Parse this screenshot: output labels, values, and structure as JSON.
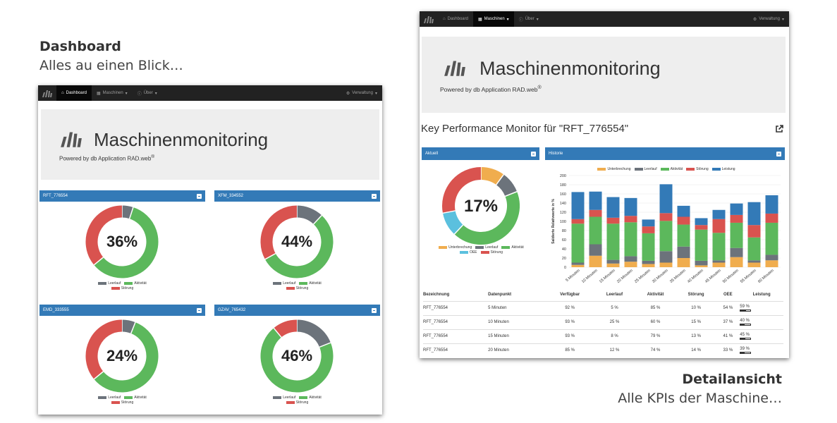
{
  "captions": {
    "dashboard": {
      "title": "Dashboard",
      "sub": "Alles au einen Blick…"
    },
    "detail": {
      "title": "Detailansicht",
      "sub": "Alle KPIs der Maschine…"
    }
  },
  "nav": {
    "dashboard": "Dashboard",
    "machines": "Maschinen",
    "about": "Über",
    "admin": "Verwaltung"
  },
  "brand": {
    "title": "Maschinenmonitoring",
    "powered": "Powered by db Application RAD.web",
    "reg": "®"
  },
  "colors": {
    "unterbrechung": "#f0ad4e",
    "leerlauf": "#6c737b",
    "aktivitaet": "#5cb85c",
    "stoerung": "#d9534f",
    "leistung": "#337ab7",
    "oee": "#5bc0de",
    "empty": "#dd4b48"
  },
  "dashboard": {
    "machines": [
      {
        "name": "RFT_776554",
        "pct": "36%",
        "segments": [
          {
            "k": "leerlauf",
            "v": 5
          },
          {
            "k": "aktivitaet",
            "v": 59
          },
          {
            "k": "stoerung",
            "v": 36
          }
        ]
      },
      {
        "name": "XFM_334552",
        "pct": "44%",
        "segments": [
          {
            "k": "leerlauf",
            "v": 12
          },
          {
            "k": "aktivitaet",
            "v": 55
          },
          {
            "k": "stoerung",
            "v": 33
          }
        ]
      },
      {
        "name": "EMD_333555",
        "pct": "24%",
        "segments": [
          {
            "k": "leerlauf",
            "v": 6
          },
          {
            "k": "aktivitaet",
            "v": 58
          },
          {
            "k": "stoerung",
            "v": 36
          }
        ]
      },
      {
        "name": "GZAV_765432",
        "pct": "46%",
        "segments": [
          {
            "k": "leerlauf",
            "v": 19
          },
          {
            "k": "aktivitaet",
            "v": 70
          },
          {
            "k": "stoerung",
            "v": 11
          }
        ]
      }
    ],
    "legend": {
      "leerlauf": "Leerlauf",
      "aktivitaet": "Aktivität",
      "stoerung": "Störung"
    }
  },
  "detail": {
    "heading": "Key Performance Monitor für \"RFT_776554\"",
    "aktuell_title": "Aktuell",
    "historie_title": "Historie",
    "current": {
      "pct": "17%",
      "segments": [
        {
          "k": "unterbrechung",
          "v": 10
        },
        {
          "k": "leerlauf",
          "v": 9
        },
        {
          "k": "aktivitaet",
          "v": 43
        },
        {
          "k": "oee",
          "v": 10
        },
        {
          "k": "stoerung",
          "v": 28
        }
      ]
    },
    "current_legend": {
      "unterbrechung": "Unterbrechung",
      "leerlauf": "Leerlauf",
      "aktivitaet": "Aktivität",
      "oee": "OEE",
      "stoerung": "Störung"
    },
    "history_legend": {
      "unterbrechung": "Unterbrechung",
      "leerlauf": "Leerlauf",
      "aktivitaet": "Aktivität",
      "stoerung": "Störung",
      "leistung": "Leistung"
    },
    "table": {
      "headers": [
        "Bezeichnung",
        "Datenpunkt",
        "Verfügbar",
        "Leerlauf",
        "Aktivität",
        "Störung",
        "OEE",
        "Leistung"
      ],
      "rows": [
        {
          "cells": [
            "RFT_776554",
            "5 Minuten",
            "92 %",
            "5 %",
            "85 %",
            "10 %",
            "54 %"
          ],
          "leistung": "59 %",
          "leistung_value": 59
        },
        {
          "cells": [
            "RFT_776554",
            "10 Minuten",
            "93 %",
            "25 %",
            "60 %",
            "15 %",
            "37 %"
          ],
          "leistung": "40 %",
          "leistung_value": 40
        },
        {
          "cells": [
            "RFT_776554",
            "15 Minuten",
            "93 %",
            "8 %",
            "79 %",
            "13 %",
            "41 %"
          ],
          "leistung": "45 %",
          "leistung_value": 45
        },
        {
          "cells": [
            "RFT_776554",
            "20 Minuten",
            "85 %",
            "12 %",
            "74 %",
            "14 %",
            "33 %"
          ],
          "leistung": "39 %",
          "leistung_value": 39
        }
      ]
    }
  },
  "chart_data": {
    "type": "bar",
    "stacked": true,
    "categories": [
      "5 Minuten",
      "10 Minuten",
      "15 Minuten",
      "20 Minuten",
      "25 Minuten",
      "30 Minuten",
      "35 Minuten",
      "40 Minuten",
      "45 Minuten",
      "50 Minuten",
      "55 Minuten",
      "60 Minuten"
    ],
    "ylabel": "Saldierte Relativwerte in %",
    "ylim": [
      0,
      200
    ],
    "yticks": [
      0,
      20,
      40,
      60,
      80,
      100,
      120,
      140,
      160,
      180,
      200
    ],
    "legend_position": "top",
    "series": [
      {
        "name": "Unterbrechung",
        "key": "unterbrechung",
        "values": [
          5,
          25,
          8,
          12,
          7,
          10,
          20,
          4,
          10,
          22,
          10,
          15
        ]
      },
      {
        "name": "Leerlauf",
        "key": "leerlauf",
        "values": [
          5,
          25,
          8,
          12,
          7,
          25,
          25,
          10,
          5,
          20,
          5,
          12
        ]
      },
      {
        "name": "Aktivität",
        "key": "aktivitaet",
        "values": [
          85,
          60,
          79,
          74,
          60,
          66,
          48,
          68,
          60,
          55,
          50,
          70
        ]
      },
      {
        "name": "Störung",
        "key": "stoerung",
        "values": [
          10,
          15,
          13,
          14,
          15,
          17,
          17,
          10,
          30,
          17,
          27,
          20
        ]
      },
      {
        "name": "Leistung",
        "key": "leistung",
        "values": [
          59,
          40,
          45,
          39,
          15,
          63,
          24,
          15,
          20,
          25,
          50,
          40
        ]
      }
    ]
  }
}
